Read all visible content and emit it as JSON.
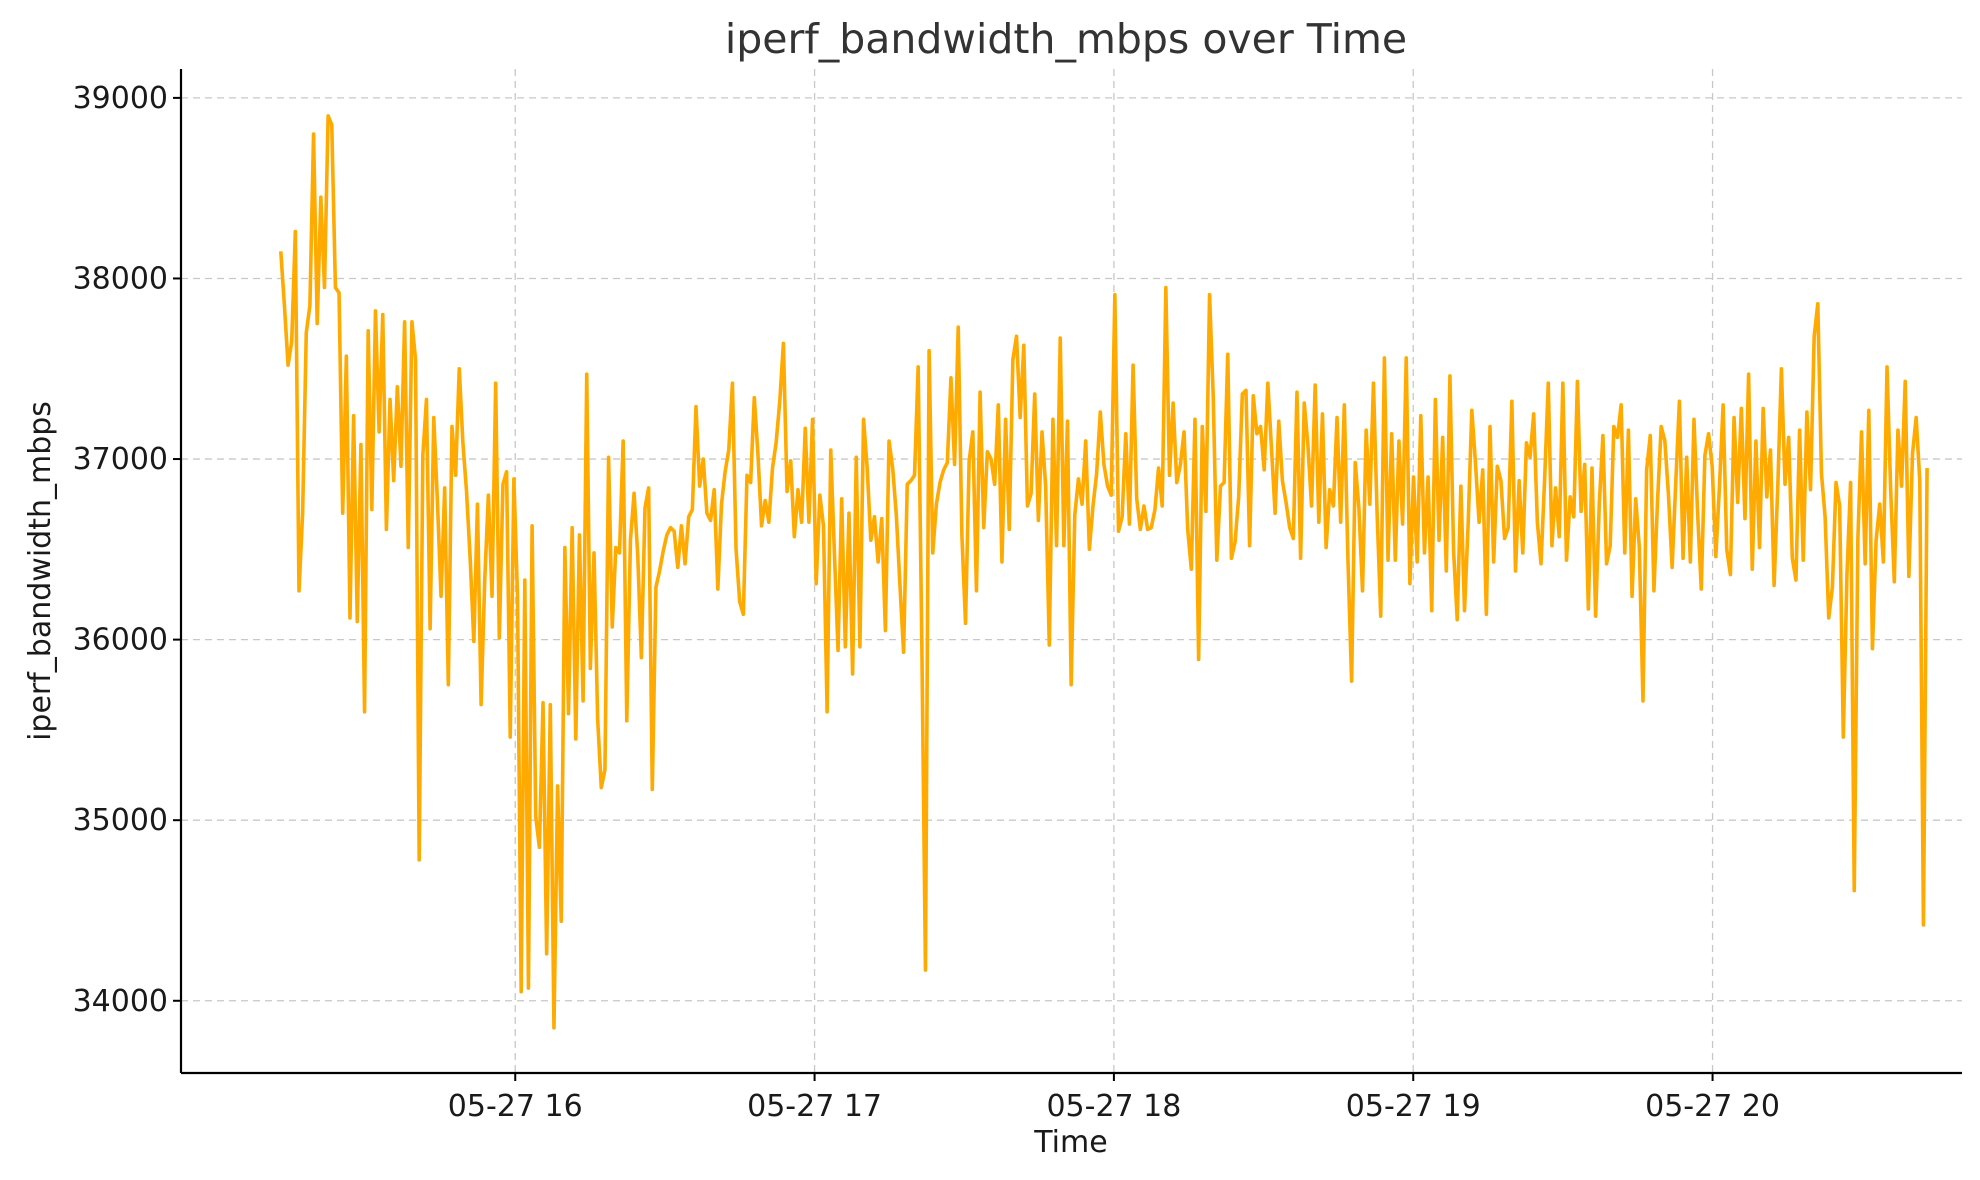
{
  "chart_data": {
    "type": "line",
    "title": "iperf_bandwidth_mbps over Time",
    "xlabel": "Time",
    "ylabel": "iperf_bandwidth_mbps",
    "x_ticks": [
      {
        "value": "2024-05-27T16:00",
        "label": "05-27 16"
      },
      {
        "value": "2024-05-27T17:00",
        "label": "05-27 17"
      },
      {
        "value": "2024-05-27T18:00",
        "label": "05-27 18"
      },
      {
        "value": "2024-05-27T19:00",
        "label": "05-27 19"
      },
      {
        "value": "2024-05-27T20:00",
        "label": "05-27 20"
      }
    ],
    "y_ticks": [
      34000,
      35000,
      36000,
      37000,
      38000,
      39000
    ],
    "xlim": [
      "2024-05-27T14:53",
      "2024-05-27T20:50"
    ],
    "ylim": [
      33600,
      39160
    ],
    "grid": true,
    "colors": {
      "line": "#FFAA00",
      "grid": "#c8c8c8"
    },
    "series": [
      {
        "color": "#FFAA00",
        "x_start": "2024-05-27T15:13",
        "x_end": "2024-05-27T20:43",
        "values": [
          38150,
          37850,
          37520,
          37650,
          38260,
          36270,
          36700,
          37700,
          37850,
          38800,
          37750,
          38450,
          37950,
          38900,
          38850,
          37950,
          37920,
          36700,
          37570,
          36120,
          37240,
          36100,
          37080,
          35600,
          37710,
          36720,
          37820,
          37150,
          37800,
          36610,
          37330,
          36880,
          37400,
          36960,
          37760,
          36510,
          37760,
          37550,
          34780,
          37020,
          37330,
          36060,
          37230,
          36770,
          36240,
          36840,
          35750,
          37180,
          36910,
          37500,
          37090,
          36820,
          36450,
          35990,
          36750,
          35640,
          36330,
          36800,
          36240,
          37420,
          36010,
          36860,
          36930,
          35460,
          36890,
          36240,
          34050,
          36330,
          34070,
          36630,
          35020,
          34850,
          35650,
          34260,
          35640,
          33850,
          35190,
          34440,
          36510,
          35590,
          36620,
          35450,
          36580,
          35660,
          37470,
          35840,
          36480,
          35560,
          35180,
          35280,
          37010,
          36070,
          36510,
          36480,
          37100,
          35550,
          36550,
          36810,
          36470,
          35900,
          36730,
          36840,
          35170,
          36290,
          36380,
          36490,
          36580,
          36620,
          36600,
          36400,
          36630,
          36420,
          36680,
          36720,
          37290,
          36850,
          37000,
          36700,
          36660,
          36830,
          36280,
          36750,
          36930,
          37050,
          37420,
          36500,
          36210,
          36140,
          36910,
          36870,
          37340,
          37030,
          36630,
          36770,
          36650,
          36950,
          37090,
          37320,
          37640,
          36820,
          36990,
          36570,
          36830,
          36650,
          37170,
          36650,
          37220,
          36310,
          36800,
          36630,
          35600,
          37050,
          36480,
          35940,
          36780,
          35960,
          36700,
          35810,
          37010,
          35960,
          37220,
          36950,
          36550,
          36680,
          36430,
          36670,
          36050,
          37100,
          36950,
          36690,
          36300,
          35930,
          36860,
          36880,
          36910,
          37510,
          35990,
          34170,
          37600,
          36480,
          36750,
          36870,
          36940,
          36980,
          37450,
          36970,
          37730,
          36580,
          36090,
          36990,
          37150,
          36270,
          37370,
          36620,
          37040,
          37000,
          36860,
          37300,
          36430,
          37220,
          36610,
          37550,
          37680,
          37230,
          37630,
          36740,
          36810,
          37360,
          36660,
          37150,
          36850,
          35970,
          37220,
          36520,
          37670,
          36520,
          37210,
          35750,
          36690,
          36890,
          36750,
          37100,
          36500,
          36740,
          36920,
          37260,
          36970,
          36850,
          36800,
          37910,
          36600,
          36680,
          37140,
          36640,
          37520,
          36780,
          36610,
          36740,
          36610,
          36620,
          36720,
          36950,
          36740,
          37950,
          36910,
          37310,
          36870,
          36970,
          37150,
          36610,
          36390,
          37220,
          35890,
          37180,
          36710,
          37910,
          37350,
          36440,
          36850,
          36870,
          37580,
          36450,
          36540,
          36790,
          37360,
          37380,
          36520,
          37350,
          37140,
          37180,
          36940,
          37420,
          37060,
          36700,
          37210,
          36880,
          36760,
          36620,
          36560,
          37370,
          36450,
          37310,
          37080,
          36740,
          37410,
          36650,
          37250,
          36510,
          36830,
          36740,
          37230,
          36650,
          37300,
          36440,
          35770,
          36980,
          36730,
          36270,
          37160,
          36750,
          37420,
          36700,
          36130,
          37560,
          36440,
          37140,
          36440,
          37100,
          36640,
          37560,
          36310,
          36900,
          36430,
          37240,
          36480,
          36900,
          36160,
          37330,
          36550,
          37120,
          36380,
          37460,
          36490,
          36110,
          36850,
          36160,
          36640,
          37270,
          36980,
          36650,
          36940,
          36140,
          37180,
          36430,
          36960,
          36880,
          36560,
          36620,
          37320,
          36380,
          36880,
          36480,
          37090,
          37010,
          37250,
          36650,
          36420,
          36890,
          37420,
          36520,
          36840,
          36570,
          37420,
          36440,
          36790,
          36680,
          37430,
          36710,
          36970,
          36170,
          36950,
          36130,
          36750,
          37130,
          36420,
          36520,
          37180,
          37120,
          37300,
          36480,
          37160,
          36240,
          36780,
          36510,
          35660,
          36940,
          37130,
          36270,
          36770,
          37180,
          37100,
          36800,
          36400,
          36870,
          37320,
          36450,
          37010,
          36430,
          37220,
          36700,
          36280,
          37020,
          37140,
          36960,
          36460,
          36850,
          37300,
          36500,
          36360,
          37230,
          36760,
          37280,
          36670,
          37470,
          36390,
          37100,
          36510,
          37280,
          36790,
          37050,
          36300,
          36840,
          37500,
          36860,
          37120,
          36450,
          36330,
          37160,
          36440,
          37260,
          36830,
          37680,
          37860,
          36920,
          36680,
          36120,
          36290,
          36870,
          36740,
          35460,
          36360,
          36870,
          34610,
          36560,
          37150,
          36420,
          37270,
          35950,
          36550,
          36750,
          36430,
          37510,
          36830,
          36320,
          37160,
          36850,
          37430,
          36350,
          37030,
          37230,
          36880,
          34420,
          36950
        ]
      }
    ]
  }
}
